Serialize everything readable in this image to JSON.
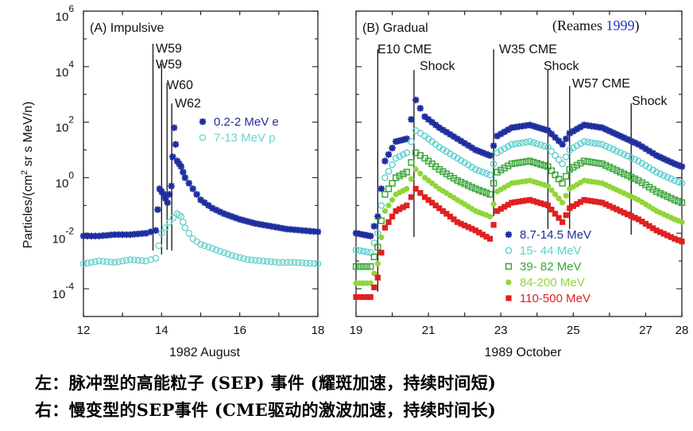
{
  "reference": {
    "prefix": "(Reames ",
    "year": "1999",
    "suffix": ")"
  },
  "ylabel": "Particles/(cm2 sr s MeV/n)",
  "caption": {
    "left": "左：脉冲型的高能粒子 (SEP) 事件 (耀斑加速，持续时间短)",
    "right": "右：慢变型的SEP事件 (CME驱动的激波加速，持续时间长)"
  },
  "colors": {
    "s1": "#1f2e9e",
    "s2": "#5ccfcf",
    "s3": "#3aa63a",
    "s4": "#8fd63a",
    "s5": "#e02020",
    "p1": "#1f2e9e",
    "p2": "#6fd3cf"
  },
  "chart_data": [
    {
      "type": "scatter",
      "title": "(A) Impulsive",
      "xlabel": "1982 August",
      "ylabel": "Particles/(cm2 sr s MeV/n)",
      "log_y": true,
      "xlim": [
        12,
        18
      ],
      "ylim": [
        -5,
        6
      ],
      "xticks": [
        "12",
        "14",
        "16",
        "18"
      ],
      "yticks": [
        {
          "base": "10",
          "exp": "6"
        },
        {
          "base": "10",
          "exp": "4"
        },
        {
          "base": "10",
          "exp": "2"
        },
        {
          "base": "10",
          "exp": "0"
        },
        {
          "base": "10",
          "exp": "-2"
        },
        {
          "base": "10",
          "exp": "-4"
        }
      ],
      "markers": [
        {
          "label": "W59",
          "x": 13.78
        },
        {
          "label": "W59",
          "x": 14.0
        },
        {
          "label": "W60",
          "x": 14.14
        },
        {
          "label": "W62",
          "x": 14.26
        }
      ],
      "series": [
        {
          "name": "0.2-2 MeV e",
          "color": "#1f2e9e",
          "marker": "star",
          "points": [
            [
              12.0,
              -2.1
            ],
            [
              12.4,
              -2.1
            ],
            [
              12.8,
              -2.05
            ],
            [
              13.2,
              -2.05
            ],
            [
              13.6,
              -2.0
            ],
            [
              13.85,
              -1.9
            ],
            [
              13.95,
              -0.4
            ],
            [
              14.05,
              -0.6
            ],
            [
              14.15,
              -0.9
            ],
            [
              14.25,
              -0.3
            ],
            [
              14.32,
              1.8
            ],
            [
              14.4,
              0.6
            ],
            [
              14.5,
              0.4
            ],
            [
              14.6,
              0.0
            ],
            [
              14.8,
              -0.4
            ],
            [
              15.0,
              -0.8
            ],
            [
              15.3,
              -1.1
            ],
            [
              15.6,
              -1.3
            ],
            [
              16.0,
              -1.5
            ],
            [
              16.4,
              -1.65
            ],
            [
              16.8,
              -1.75
            ],
            [
              17.2,
              -1.85
            ],
            [
              17.6,
              -1.9
            ],
            [
              18.0,
              -1.95
            ]
          ]
        },
        {
          "name": "7-13 MeV p",
          "color": "#6fd3cf",
          "marker": "circle",
          "points": [
            [
              12.0,
              -3.1
            ],
            [
              12.4,
              -3.0
            ],
            [
              12.8,
              -3.05
            ],
            [
              13.2,
              -2.95
            ],
            [
              13.6,
              -3.0
            ],
            [
              13.85,
              -2.9
            ],
            [
              14.0,
              -2.0
            ],
            [
              14.2,
              -1.6
            ],
            [
              14.4,
              -1.3
            ],
            [
              14.5,
              -1.4
            ],
            [
              14.6,
              -1.8
            ],
            [
              14.8,
              -2.2
            ],
            [
              15.0,
              -2.4
            ],
            [
              15.4,
              -2.6
            ],
            [
              15.8,
              -2.8
            ],
            [
              16.2,
              -2.95
            ],
            [
              16.6,
              -3.0
            ],
            [
              17.0,
              -3.05
            ],
            [
              17.4,
              -3.05
            ],
            [
              18.0,
              -3.1
            ]
          ]
        }
      ]
    },
    {
      "type": "scatter",
      "title": "(B) Gradual",
      "xlabel": "1989 October",
      "log_y": true,
      "xlim": [
        19,
        28
      ],
      "ylim": [
        -5,
        6
      ],
      "xticks": [
        "19",
        "21",
        "23",
        "25",
        "27",
        "28"
      ],
      "markers": [
        {
          "label": "E10 CME",
          "x": 19.6
        },
        {
          "label": "Shock",
          "x": 20.6
        },
        {
          "label": "W35 CME",
          "x": 22.8
        },
        {
          "label": "Shock",
          "x": 24.3
        },
        {
          "label": "W57 CME",
          "x": 24.9
        },
        {
          "label": "Shock",
          "x": 26.6
        }
      ],
      "series": [
        {
          "name": "8.7-14.5 MeV",
          "color": "#1f2e9e",
          "marker": "star",
          "points": [
            [
              19.0,
              -2.0
            ],
            [
              19.4,
              -2.1
            ],
            [
              19.6,
              -1.4
            ],
            [
              19.8,
              0.6
            ],
            [
              20.1,
              1.3
            ],
            [
              20.4,
              1.4
            ],
            [
              20.65,
              2.8
            ],
            [
              20.9,
              2.2
            ],
            [
              21.3,
              1.8
            ],
            [
              21.8,
              1.4
            ],
            [
              22.3,
              1.0
            ],
            [
              22.7,
              0.8
            ],
            [
              22.9,
              1.5
            ],
            [
              23.3,
              1.8
            ],
            [
              23.8,
              1.9
            ],
            [
              24.3,
              1.7
            ],
            [
              24.7,
              1.2
            ],
            [
              24.9,
              1.6
            ],
            [
              25.3,
              1.9
            ],
            [
              25.8,
              1.8
            ],
            [
              26.3,
              1.5
            ],
            [
              26.8,
              1.2
            ],
            [
              27.3,
              0.8
            ],
            [
              27.8,
              0.5
            ],
            [
              28.0,
              0.4
            ]
          ]
        },
        {
          "name": "15- 44 MeV",
          "color": "#5ccfcf",
          "marker": "circle",
          "points": [
            [
              19.0,
              -2.6
            ],
            [
              19.4,
              -2.7
            ],
            [
              19.6,
              -2.0
            ],
            [
              19.8,
              0.0
            ],
            [
              20.1,
              0.7
            ],
            [
              20.4,
              0.9
            ],
            [
              20.65,
              1.7
            ],
            [
              20.9,
              1.5
            ],
            [
              21.3,
              1.1
            ],
            [
              21.8,
              0.7
            ],
            [
              22.3,
              0.3
            ],
            [
              22.7,
              0.1
            ],
            [
              22.9,
              0.9
            ],
            [
              23.3,
              1.2
            ],
            [
              23.8,
              1.3
            ],
            [
              24.3,
              1.1
            ],
            [
              24.7,
              0.5
            ],
            [
              24.9,
              1.0
            ],
            [
              25.3,
              1.3
            ],
            [
              25.8,
              1.2
            ],
            [
              26.3,
              0.9
            ],
            [
              26.8,
              0.6
            ],
            [
              27.3,
              0.2
            ],
            [
              27.8,
              -0.1
            ],
            [
              28.0,
              -0.2
            ]
          ]
        },
        {
          "name": "39- 82 MeV",
          "color": "#3aa63a",
          "marker": "square",
          "points": [
            [
              19.0,
              -3.2
            ],
            [
              19.4,
              -3.2
            ],
            [
              19.6,
              -2.5
            ],
            [
              19.8,
              -0.6
            ],
            [
              20.1,
              0.0
            ],
            [
              20.4,
              0.2
            ],
            [
              20.65,
              0.9
            ],
            [
              20.9,
              0.7
            ],
            [
              21.3,
              0.3
            ],
            [
              21.8,
              -0.1
            ],
            [
              22.3,
              -0.4
            ],
            [
              22.7,
              -0.6
            ],
            [
              22.9,
              0.2
            ],
            [
              23.3,
              0.5
            ],
            [
              23.8,
              0.6
            ],
            [
              24.3,
              0.4
            ],
            [
              24.7,
              -0.2
            ],
            [
              24.9,
              0.3
            ],
            [
              25.3,
              0.6
            ],
            [
              25.8,
              0.5
            ],
            [
              26.3,
              0.2
            ],
            [
              26.8,
              -0.1
            ],
            [
              27.3,
              -0.5
            ],
            [
              27.8,
              -0.8
            ],
            [
              28.0,
              -0.9
            ]
          ]
        },
        {
          "name": "84-200 MeV",
          "color": "#8fd63a",
          "marker": "dot",
          "points": [
            [
              19.0,
              -3.8
            ],
            [
              19.4,
              -3.8
            ],
            [
              19.6,
              -3.1
            ],
            [
              19.8,
              -1.2
            ],
            [
              20.1,
              -0.6
            ],
            [
              20.4,
              -0.4
            ],
            [
              20.65,
              0.3
            ],
            [
              20.9,
              0.0
            ],
            [
              21.3,
              -0.4
            ],
            [
              21.8,
              -0.8
            ],
            [
              22.3,
              -1.2
            ],
            [
              22.7,
              -1.4
            ],
            [
              22.9,
              -0.5
            ],
            [
              23.3,
              -0.2
            ],
            [
              23.8,
              -0.1
            ],
            [
              24.3,
              -0.3
            ],
            [
              24.7,
              -0.9
            ],
            [
              24.9,
              -0.4
            ],
            [
              25.3,
              -0.1
            ],
            [
              25.8,
              -0.2
            ],
            [
              26.3,
              -0.5
            ],
            [
              26.8,
              -0.8
            ],
            [
              27.3,
              -1.2
            ],
            [
              27.8,
              -1.5
            ],
            [
              28.0,
              -1.6
            ]
          ]
        },
        {
          "name": "110-500 MeV",
          "color": "#e02020",
          "marker": "square-filled",
          "points": [
            [
              19.0,
              -4.3
            ],
            [
              19.4,
              -4.3
            ],
            [
              19.6,
              -3.6
            ],
            [
              19.8,
              -1.8
            ],
            [
              20.1,
              -1.2
            ],
            [
              20.4,
              -1.0
            ],
            [
              20.65,
              -0.4
            ],
            [
              20.9,
              -0.7
            ],
            [
              21.3,
              -1.1
            ],
            [
              21.8,
              -1.6
            ],
            [
              22.3,
              -1.9
            ],
            [
              22.7,
              -2.2
            ],
            [
              22.9,
              -1.2
            ],
            [
              23.3,
              -0.9
            ],
            [
              23.8,
              -0.8
            ],
            [
              24.3,
              -1.0
            ],
            [
              24.7,
              -1.6
            ],
            [
              24.9,
              -1.1
            ],
            [
              25.3,
              -0.8
            ],
            [
              25.8,
              -0.9
            ],
            [
              26.3,
              -1.2
            ],
            [
              26.8,
              -1.5
            ],
            [
              27.3,
              -1.9
            ],
            [
              27.8,
              -2.2
            ],
            [
              28.0,
              -2.3
            ]
          ]
        }
      ]
    }
  ]
}
